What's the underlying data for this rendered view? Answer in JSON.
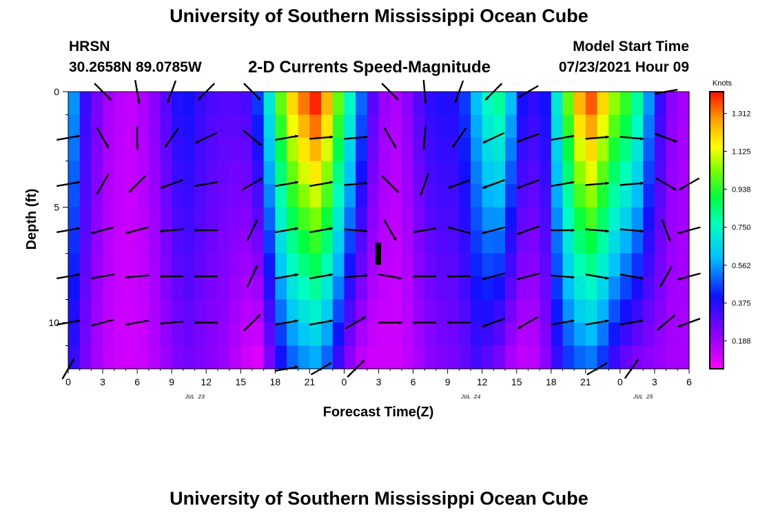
{
  "header": {
    "main_title": "University of Southern Mississippi Ocean Cube",
    "station": "HRSN",
    "coordinates": "30.2658N  89.0785W",
    "plot_title": "2-D Currents Speed-Magnitude",
    "model_start_label": "Model Start Time",
    "model_start_value": "07/23/2021 Hour 09",
    "footer_title": "University of Southern Mississippi Ocean Cube"
  },
  "chart_data": {
    "type": "heatmap",
    "title": "2-D Currents Speed-Magnitude",
    "xlabel": "Forecast Time(Z)",
    "ylabel": "Depth (ft)",
    "x_tick_labels": [
      "0",
      "3",
      "6",
      "9",
      "12",
      "15",
      "18",
      "21",
      "0",
      "3",
      "6",
      "9",
      "12",
      "15",
      "18",
      "21",
      "0",
      "3",
      "6"
    ],
    "x_tick_hours": [
      0,
      3,
      6,
      9,
      12,
      15,
      18,
      21,
      24,
      27,
      30,
      33,
      36,
      39,
      42,
      45,
      48,
      51,
      54
    ],
    "date_labels": [
      {
        "text": "JUL 23",
        "hour": 11
      },
      {
        "text": "JUL 24",
        "hour": 35
      },
      {
        "text": "JUL 25",
        "hour": 50
      }
    ],
    "xlim": [
      0,
      54
    ],
    "y_tick_labels": [
      "0",
      "5",
      "10"
    ],
    "y_tick_values": [
      0,
      5,
      10
    ],
    "ylim": [
      0,
      12
    ],
    "depths_ft": [
      0,
      1,
      2,
      3,
      4,
      5,
      6,
      7,
      8,
      9,
      10,
      11
    ],
    "colorbar": {
      "label": "Knots",
      "ticks": [
        "0.188",
        "0.375",
        "0.562",
        "0.750",
        "0.938",
        "1.125",
        "1.312"
      ],
      "tick_values": [
        0.188,
        0.375,
        0.562,
        0.75,
        0.938,
        1.125,
        1.312
      ],
      "range": [
        0.05,
        1.42
      ]
    },
    "speed_profile_hours": [
      0,
      1,
      2,
      3,
      4,
      5,
      6,
      7,
      8,
      9,
      10,
      11,
      12,
      13,
      14,
      15,
      16,
      17,
      18,
      19,
      20,
      21,
      22,
      23,
      24,
      25,
      26,
      27,
      28,
      29,
      30,
      31,
      32,
      33,
      34,
      35,
      36,
      37,
      38,
      39,
      40,
      41,
      42,
      43,
      44,
      45,
      46,
      47,
      48,
      49,
      50,
      51,
      52,
      53,
      54
    ],
    "surface_speed_kn": [
      0.55,
      0.35,
      0.25,
      0.18,
      0.15,
      0.14,
      0.17,
      0.22,
      0.3,
      0.38,
      0.4,
      0.35,
      0.32,
      0.3,
      0.3,
      0.32,
      0.45,
      0.7,
      1.0,
      1.2,
      1.32,
      1.4,
      1.25,
      1.0,
      0.75,
      0.5,
      0.3,
      0.2,
      0.17,
      0.22,
      0.3,
      0.36,
      0.38,
      0.38,
      0.45,
      0.6,
      0.75,
      0.8,
      0.6,
      0.4,
      0.36,
      0.4,
      0.7,
      1.0,
      1.25,
      1.35,
      1.2,
      1.05,
      0.95,
      0.8,
      0.55,
      0.35,
      0.22,
      0.18,
      0.22
    ],
    "bottom_speed_kn": [
      0.35,
      0.25,
      0.18,
      0.14,
      0.12,
      0.12,
      0.13,
      0.16,
      0.2,
      0.24,
      0.26,
      0.24,
      0.22,
      0.2,
      0.16,
      0.12,
      0.1,
      0.25,
      0.4,
      0.5,
      0.55,
      0.58,
      0.5,
      0.35,
      0.22,
      0.15,
      0.12,
      0.12,
      0.12,
      0.14,
      0.18,
      0.22,
      0.24,
      0.25,
      0.28,
      0.33,
      0.3,
      0.25,
      0.18,
      0.14,
      0.15,
      0.22,
      0.35,
      0.45,
      0.5,
      0.52,
      0.45,
      0.35,
      0.28,
      0.24,
      0.22,
      0.2,
      0.18,
      0.18,
      0.2
    ],
    "vector_hours": [
      0,
      3,
      6,
      9,
      12,
      16,
      19,
      22,
      25,
      28,
      31,
      34,
      37,
      40,
      43,
      46,
      49,
      52,
      54
    ],
    "vector_depths_ft": [
      0,
      2,
      4,
      6,
      8,
      10,
      12
    ],
    "vector_directions_deg": [
      [
        null,
        135,
        170,
        200,
        225,
        135,
        null,
        null,
        null,
        135,
        175,
        200,
        225,
        240,
        null,
        null,
        null,
        260,
        null
      ],
      [
        80,
        150,
        180,
        215,
        245,
        130,
        80,
        85,
        85,
        150,
        185,
        215,
        245,
        250,
        80,
        85,
        95,
        110,
        null
      ],
      [
        80,
        210,
        225,
        250,
        260,
        60,
        80,
        80,
        85,
        135,
        200,
        250,
        250,
        250,
        80,
        85,
        85,
        120,
        240
      ],
      [
        80,
        255,
        255,
        265,
        270,
        25,
        80,
        80,
        95,
        150,
        260,
        285,
        255,
        250,
        90,
        95,
        95,
        160,
        255
      ],
      [
        80,
        260,
        265,
        270,
        270,
        25,
        80,
        80,
        85,
        100,
        270,
        270,
        255,
        255,
        95,
        100,
        100,
        210,
        255
      ],
      [
        80,
        255,
        260,
        265,
        270,
        45,
        80,
        80,
        60,
        90,
        270,
        270,
        250,
        240,
        80,
        80,
        80,
        230,
        250
      ],
      [
        30,
        null,
        null,
        null,
        null,
        null,
        80,
        60,
        45,
        null,
        null,
        null,
        null,
        null,
        null,
        60,
        35,
        null,
        null
      ]
    ]
  }
}
